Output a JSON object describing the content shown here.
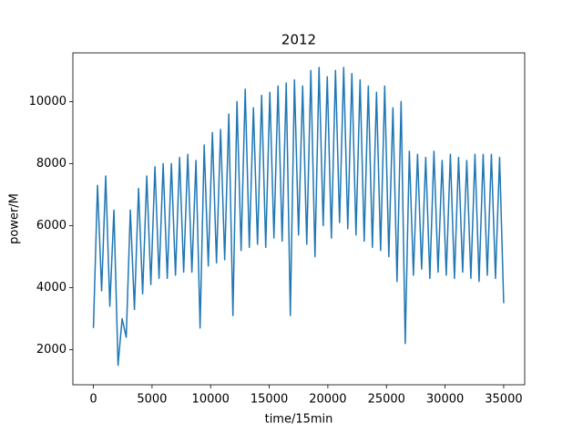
{
  "chart_data": {
    "type": "line",
    "title": "2012",
    "xlabel": "time/15min",
    "ylabel": "power/M",
    "x": [
      0,
      350,
      700,
      1050,
      1400,
      1750,
      2100,
      2450,
      2800,
      3150,
      3500,
      3850,
      4200,
      4550,
      4900,
      5250,
      5600,
      5950,
      6300,
      6650,
      7000,
      7350,
      7700,
      8050,
      8400,
      8750,
      9100,
      9450,
      9800,
      10150,
      10500,
      10850,
      11200,
      11550,
      11900,
      12250,
      12600,
      12950,
      13300,
      13650,
      14000,
      14350,
      14700,
      15050,
      15400,
      15750,
      16100,
      16450,
      16800,
      17150,
      17500,
      17850,
      18200,
      18550,
      18900,
      19250,
      19600,
      19950,
      20300,
      20650,
      21000,
      21350,
      21700,
      22050,
      22400,
      22750,
      23100,
      23450,
      23800,
      24150,
      24500,
      24850,
      25200,
      25550,
      25900,
      26250,
      26600,
      26950,
      27300,
      27650,
      28000,
      28350,
      28700,
      29050,
      29400,
      29750,
      30100,
      30450,
      30800,
      31150,
      31500,
      31850,
      32200,
      32550,
      32900,
      33250,
      33600,
      33950,
      34300,
      34650,
      35000
    ],
    "series": [
      {
        "color": "#1f77b4",
        "values": [
          2700,
          7300,
          3900,
          7600,
          3400,
          6500,
          1500,
          3000,
          2400,
          6500,
          3300,
          7200,
          3800,
          7600,
          4100,
          7900,
          4300,
          8000,
          4300,
          8000,
          4400,
          8200,
          4500,
          8300,
          4500,
          8100,
          2700,
          8600,
          4700,
          9000,
          4800,
          9100,
          4900,
          9600,
          3100,
          10000,
          5200,
          10400,
          5300,
          9800,
          5400,
          10200,
          5300,
          10300,
          5600,
          10500,
          5500,
          10600,
          3100,
          10700,
          5700,
          10500,
          5400,
          11000,
          5000,
          11100,
          6000,
          10800,
          5600,
          11000,
          6100,
          11100,
          5900,
          10900,
          5700,
          10700,
          5500,
          10500,
          5300,
          10300,
          5200,
          10500,
          5000,
          9800,
          4200,
          10000,
          2200,
          8400,
          4400,
          8300,
          4600,
          8200,
          4300,
          8400,
          4500,
          8100,
          4400,
          8300,
          4300,
          8200,
          4500,
          8100,
          4300,
          8300,
          4200,
          8300,
          4400,
          8300,
          4300,
          8200,
          3500
        ]
      }
    ],
    "xlim": [
      -1752,
      36792
    ],
    "ylim": [
      870,
      11570
    ],
    "xticks": [
      0,
      5000,
      10000,
      15000,
      20000,
      25000,
      30000,
      35000
    ],
    "yticks": [
      2000,
      4000,
      6000,
      8000,
      10000
    ]
  }
}
